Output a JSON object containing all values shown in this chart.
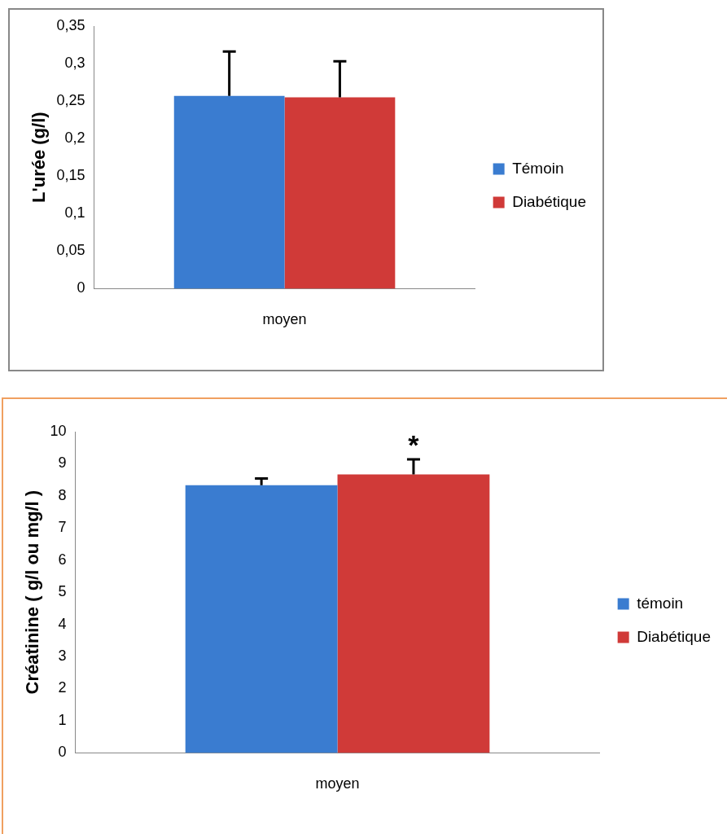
{
  "chart_data": [
    {
      "type": "bar",
      "ylabel": "L'urée (g/l)",
      "categories": [
        "moyen"
      ],
      "series": [
        {
          "name": "Témoin",
          "color": "#3a7cd0",
          "values": [
            0.257
          ],
          "errors": [
            [
              0.257,
              0.316
            ]
          ]
        },
        {
          "name": "Diabétique",
          "color": "#d03a38",
          "values": [
            0.255
          ],
          "errors": [
            [
              0.255,
              0.303
            ]
          ]
        }
      ],
      "ylim": [
        0,
        0.35
      ],
      "yticks": [
        {
          "value": 0,
          "label": "0"
        },
        {
          "value": 0.05,
          "label": "0,05"
        },
        {
          "value": 0.1,
          "label": "0,1"
        },
        {
          "value": 0.15,
          "label": "0,15"
        },
        {
          "value": 0.2,
          "label": "0,2"
        },
        {
          "value": 0.25,
          "label": "0,25"
        },
        {
          "value": 0.3,
          "label": "0,3"
        },
        {
          "value": 0.35,
          "label": "0,35"
        }
      ],
      "grid": false,
      "legend": "right"
    },
    {
      "type": "bar",
      "ylabel": "Créatinine ( g/l ou mg/l )",
      "categories": [
        "moyen"
      ],
      "series": [
        {
          "name": "témoin",
          "color": "#3a7cd0",
          "values": [
            8.33
          ],
          "errors": [
            [
              8.33,
              8.54
            ]
          ]
        },
        {
          "name": "Diabétique",
          "color": "#d03a38",
          "values": [
            8.67
          ],
          "errors": [
            [
              8.67,
              9.14
            ]
          ]
        }
      ],
      "ylim": [
        0,
        10
      ],
      "yticks": [
        0,
        1,
        2,
        3,
        4,
        5,
        6,
        7,
        8,
        9,
        10
      ],
      "annotations": [
        "*"
      ],
      "grid": false,
      "legend": "right"
    }
  ]
}
